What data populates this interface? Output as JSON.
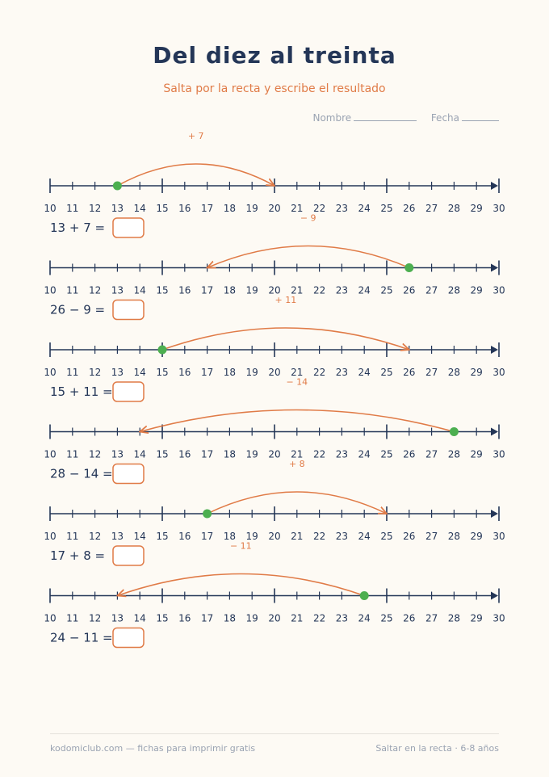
{
  "header": {
    "title": "Del diez al treinta",
    "subtitle": "Salta por la recta y escribe el resultado",
    "name_label": "Nombre",
    "date_label": "Fecha"
  },
  "number_line": {
    "min": 10,
    "max": 30,
    "major_every": 5,
    "accent_color": "#e07b47",
    "start_point_color": "#4caf50",
    "line_color": "#243657"
  },
  "exercises": [
    {
      "start": 13,
      "op": "+",
      "amount": 7,
      "jump_label": "+ 7",
      "equation": "13 + 7 ="
    },
    {
      "start": 26,
      "op": "-",
      "amount": 9,
      "jump_label": "− 9",
      "equation": "26 − 9 ="
    },
    {
      "start": 15,
      "op": "+",
      "amount": 11,
      "jump_label": "+ 11",
      "equation": "15 + 11 ="
    },
    {
      "start": 28,
      "op": "-",
      "amount": 14,
      "jump_label": "− 14",
      "equation": "28 − 14 ="
    },
    {
      "start": 17,
      "op": "+",
      "amount": 8,
      "jump_label": "+ 8",
      "equation": "17 + 8 ="
    },
    {
      "start": 24,
      "op": "-",
      "amount": 11,
      "jump_label": "− 11",
      "equation": "24 − 11 ="
    }
  ],
  "footer": {
    "left": "kodomiclub.com — fichas para imprimir gratis",
    "right": "Saltar en la recta · 6-8 años"
  }
}
